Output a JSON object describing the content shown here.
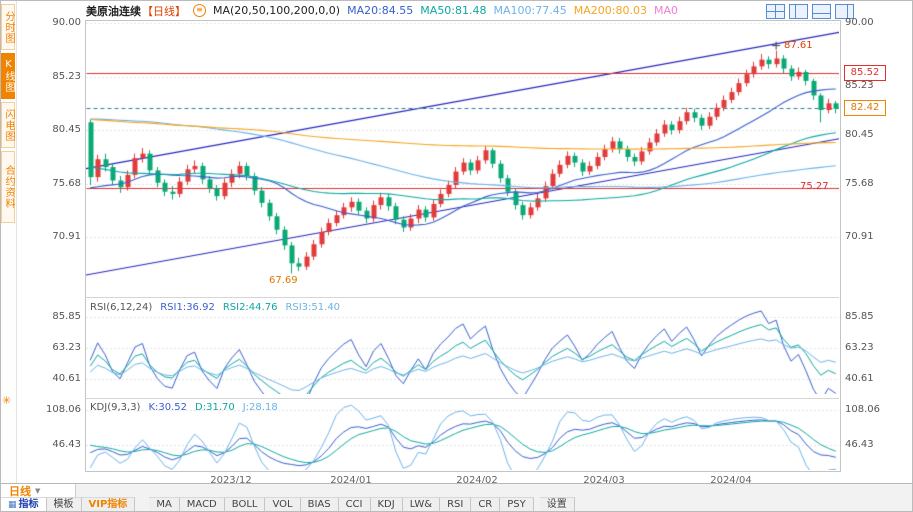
{
  "sidebar": {
    "items": [
      {
        "label": "分时图"
      },
      {
        "label": "K线图"
      },
      {
        "label": "闪电图"
      },
      {
        "label": "合约资料"
      }
    ]
  },
  "header": {
    "title": "美原油连续",
    "period_tag": "【日线】",
    "ma_caption": "MA(20,50,100,200,0,0)",
    "ma_labels": [
      {
        "text": "MA20:84.55",
        "color": "#3a5fcd"
      },
      {
        "text": "MA50:81.48",
        "color": "#0fa8a0"
      },
      {
        "text": "MA100:77.45",
        "color": "#6cb3e8"
      },
      {
        "text": "MA200:80.03",
        "color": "#f5a623"
      },
      {
        "text": "MA0",
        "color": "#f07fd0"
      }
    ]
  },
  "axes": {
    "main": [
      "90.00",
      "85.23",
      "80.45",
      "75.68",
      "70.91"
    ],
    "rsi": [
      "85.85",
      "63.23",
      "40.61"
    ],
    "kdj": [
      "108.06",
      "46.43"
    ]
  },
  "tags": {
    "resistance": "85.52",
    "last": "82.42",
    "support": "75.27",
    "high": "87.61",
    "low": "67.69"
  },
  "rsi_panel": {
    "caption": "RSI(6,12,24)",
    "values": [
      {
        "text": "RSI1:36.92",
        "color": "#3a5fcd"
      },
      {
        "text": "RSI2:44.76",
        "color": "#0fa8a0"
      },
      {
        "text": "RSI3:51.40",
        "color": "#6cb3e8"
      }
    ]
  },
  "kdj_panel": {
    "caption": "KDJ(9,3,3)",
    "values": [
      {
        "text": "K:30.52",
        "color": "#3a5fcd"
      },
      {
        "text": "D:31.70",
        "color": "#0fa8a0"
      },
      {
        "text": "J:28.18",
        "color": "#6cb3e8"
      }
    ]
  },
  "x_axis": [
    "2023/12",
    "2024/01",
    "2024/02",
    "2024/03",
    "2024/04"
  ],
  "bottom": {
    "period": "日线",
    "tabs": [
      "指标",
      "模板",
      "VIP指标"
    ],
    "indicators": [
      "MA",
      "MACD",
      "BOLL",
      "VOL",
      "BIAS",
      "CCI",
      "KDJ",
      "LW&",
      "RSI",
      "CR",
      "PSY"
    ],
    "settings": "设置"
  },
  "chart_data": {
    "type": "candlestick",
    "title": "美原油连续 日线",
    "price_ylim": [
      65.9,
      90.3
    ],
    "y_ticks": [
      90.0,
      85.23,
      80.45,
      75.68,
      70.91
    ],
    "x_ticks": [
      {
        "index": 19,
        "label": "2023/12"
      },
      {
        "index": 35,
        "label": "2024/01"
      },
      {
        "index": 52,
        "label": "2024/02"
      },
      {
        "index": 69,
        "label": "2024/03"
      },
      {
        "index": 86,
        "label": "2024/04"
      }
    ],
    "up_color": "#e23b3b",
    "down_color": "#0aa876",
    "grid_color": "#c9c9c9",
    "trendline_color": "#2222bb",
    "trendlines": [
      {
        "from": [
          0,
          77.0
        ],
        "to": [
          100,
          89.3
        ]
      },
      {
        "from": [
          0,
          67.5
        ],
        "to": [
          100,
          79.8
        ]
      }
    ],
    "hlines": [
      {
        "price": 85.52,
        "color": "#e03030"
      },
      {
        "price": 75.27,
        "color": "#e03030"
      }
    ],
    "last_price_line": {
      "price": 82.42,
      "color": "#2e7d9e"
    },
    "annotations": {
      "high": {
        "index": 92,
        "price": 87.61
      },
      "low": {
        "index": 27,
        "price": 67.69
      }
    },
    "ma_windows": [
      20,
      50,
      100,
      200
    ],
    "ma_colors": [
      "#3a5fcd",
      "#0fa8a0",
      "#6cb3e8",
      "#f5a623"
    ],
    "ma_seed_closes": [
      78.0,
      78.4,
      78.9,
      79.3,
      79.8,
      80.2,
      80.7,
      81.1,
      81.6,
      82.0,
      82.4,
      82.9,
      83.3,
      83.0,
      82.6,
      83.1,
      83.7,
      84.2,
      84.8,
      85.3,
      85.8,
      86.2,
      86.7,
      86.3,
      85.9,
      86.4,
      86.9,
      87.5,
      88.0,
      88.5,
      88.9,
      89.4,
      88.9,
      88.4,
      88.9,
      89.4,
      89.9,
      90.3,
      90.8,
      91.2,
      91.6,
      90.9,
      90.1,
      89.4,
      88.6,
      87.9,
      87.1,
      86.4,
      85.6,
      84.9,
      84.1,
      83.4,
      82.6,
      81.9,
      81.1,
      80.4,
      79.6,
      78.9,
      78.1,
      77.4,
      76.6,
      75.9,
      75.1,
      74.4,
      75.0,
      75.7,
      76.3,
      77.0,
      77.6,
      78.3,
      78.9,
      79.6,
      80.2,
      80.9,
      80.3,
      79.7,
      79.0,
      78.4,
      77.8,
      77.1,
      76.5,
      75.9,
      75.2,
      74.6,
      74.0,
      73.3,
      72.7,
      73.4,
      74.0,
      74.7,
      75.3,
      76.0,
      76.6,
      77.3,
      77.9,
      77.2,
      76.6,
      75.9,
      75.3,
      74.6
    ],
    "candles": [
      [
        81.2,
        81.5,
        75.6,
        76.3
      ],
      [
        76.3,
        78.3,
        75.9,
        77.9
      ],
      [
        77.9,
        78.4,
        76.8,
        77.2
      ],
      [
        77.2,
        77.5,
        75.6,
        76.0
      ],
      [
        76.0,
        76.4,
        74.9,
        75.4
      ],
      [
        75.4,
        76.9,
        75.1,
        76.5
      ],
      [
        76.5,
        78.4,
        76.2,
        78.0
      ],
      [
        78.0,
        78.9,
        77.6,
        78.4
      ],
      [
        78.4,
        78.7,
        76.5,
        76.9
      ],
      [
        76.9,
        77.2,
        75.4,
        75.8
      ],
      [
        75.8,
        76.1,
        74.6,
        75.0
      ],
      [
        75.0,
        75.5,
        74.3,
        74.8
      ],
      [
        74.8,
        76.3,
        74.5,
        75.9
      ],
      [
        75.9,
        77.4,
        75.6,
        77.0
      ],
      [
        77.0,
        77.8,
        76.6,
        77.3
      ],
      [
        77.3,
        77.6,
        75.7,
        76.1
      ],
      [
        76.1,
        76.4,
        74.9,
        75.3
      ],
      [
        75.3,
        75.6,
        74.2,
        74.6
      ],
      [
        74.6,
        76.2,
        74.3,
        75.8
      ],
      [
        75.8,
        77.0,
        75.4,
        76.6
      ],
      [
        76.6,
        77.7,
        76.2,
        77.3
      ],
      [
        77.3,
        77.6,
        76.0,
        76.4
      ],
      [
        76.4,
        76.7,
        74.7,
        75.1
      ],
      [
        75.1,
        75.4,
        73.6,
        74.0
      ],
      [
        74.0,
        74.3,
        72.4,
        72.8
      ],
      [
        72.8,
        73.1,
        71.2,
        71.6
      ],
      [
        71.6,
        71.9,
        69.8,
        70.2
      ],
      [
        70.2,
        70.5,
        67.69,
        68.6
      ],
      [
        68.6,
        69.1,
        67.9,
        68.3
      ],
      [
        68.3,
        69.6,
        68.0,
        69.2
      ],
      [
        69.2,
        70.7,
        68.9,
        70.3
      ],
      [
        70.3,
        71.8,
        70.0,
        71.4
      ],
      [
        71.4,
        72.6,
        71.1,
        72.2
      ],
      [
        72.2,
        73.3,
        71.9,
        72.9
      ],
      [
        72.9,
        74.0,
        72.6,
        73.6
      ],
      [
        73.6,
        74.5,
        73.2,
        74.1
      ],
      [
        74.1,
        74.4,
        72.9,
        73.3
      ],
      [
        73.3,
        73.6,
        72.2,
        72.6
      ],
      [
        72.6,
        74.2,
        72.3,
        73.8
      ],
      [
        73.8,
        74.9,
        73.4,
        74.5
      ],
      [
        74.5,
        74.8,
        73.3,
        73.7
      ],
      [
        73.7,
        74.0,
        72.1,
        72.5
      ],
      [
        72.5,
        72.8,
        71.4,
        71.8
      ],
      [
        71.8,
        73.0,
        71.5,
        72.6
      ],
      [
        72.6,
        73.8,
        72.2,
        73.4
      ],
      [
        73.4,
        73.7,
        72.3,
        72.7
      ],
      [
        72.7,
        74.3,
        72.4,
        73.9
      ],
      [
        73.9,
        75.2,
        73.6,
        74.8
      ],
      [
        74.8,
        76.0,
        74.5,
        75.6
      ],
      [
        75.6,
        77.2,
        75.3,
        76.8
      ],
      [
        76.8,
        78.0,
        76.5,
        77.6
      ],
      [
        77.6,
        77.9,
        76.5,
        76.9
      ],
      [
        76.9,
        78.2,
        76.6,
        77.8
      ],
      [
        77.8,
        79.1,
        77.5,
        78.7
      ],
      [
        78.7,
        78.9,
        77.1,
        77.5
      ],
      [
        77.5,
        77.8,
        75.8,
        76.2
      ],
      [
        76.2,
        76.5,
        74.6,
        75.0
      ],
      [
        75.0,
        75.3,
        73.4,
        73.8
      ],
      [
        73.8,
        74.1,
        72.5,
        72.9
      ],
      [
        72.9,
        74.0,
        72.6,
        73.6
      ],
      [
        73.6,
        74.8,
        73.3,
        74.4
      ],
      [
        74.4,
        75.9,
        74.1,
        75.5
      ],
      [
        75.5,
        77.0,
        75.2,
        76.6
      ],
      [
        76.6,
        77.8,
        76.3,
        77.4
      ],
      [
        77.4,
        78.6,
        77.1,
        78.2
      ],
      [
        78.2,
        78.5,
        77.2,
        77.6
      ],
      [
        77.6,
        77.9,
        76.4,
        76.8
      ],
      [
        76.8,
        77.7,
        76.5,
        77.3
      ],
      [
        77.3,
        78.5,
        77.0,
        78.1
      ],
      [
        78.1,
        79.2,
        77.8,
        78.8
      ],
      [
        78.8,
        79.9,
        78.5,
        79.5
      ],
      [
        79.5,
        79.8,
        78.4,
        78.8
      ],
      [
        78.8,
        79.1,
        77.7,
        78.1
      ],
      [
        78.1,
        78.4,
        77.3,
        77.7
      ],
      [
        77.7,
        79.0,
        77.4,
        78.6
      ],
      [
        78.6,
        79.8,
        78.3,
        79.4
      ],
      [
        79.4,
        80.6,
        79.1,
        80.2
      ],
      [
        80.2,
        81.4,
        79.9,
        81.0
      ],
      [
        81.0,
        81.3,
        80.1,
        80.5
      ],
      [
        80.5,
        81.7,
        80.2,
        81.3
      ],
      [
        81.3,
        82.5,
        81.0,
        82.1
      ],
      [
        82.1,
        82.4,
        81.2,
        81.6
      ],
      [
        81.6,
        81.9,
        80.5,
        80.9
      ],
      [
        80.9,
        82.1,
        80.6,
        81.7
      ],
      [
        81.7,
        82.9,
        81.4,
        82.5
      ],
      [
        82.5,
        83.6,
        82.2,
        83.2
      ],
      [
        83.2,
        84.3,
        82.9,
        83.9
      ],
      [
        83.9,
        85.1,
        83.6,
        84.7
      ],
      [
        84.7,
        85.9,
        84.4,
        85.5
      ],
      [
        85.5,
        86.6,
        85.2,
        86.2
      ],
      [
        86.2,
        87.3,
        85.9,
        86.8
      ],
      [
        86.8,
        87.1,
        86.0,
        86.4
      ],
      [
        86.4,
        87.61,
        86.1,
        86.9
      ],
      [
        86.9,
        87.2,
        85.6,
        86.0
      ],
      [
        86.0,
        86.3,
        84.9,
        85.3
      ],
      [
        85.3,
        86.1,
        85.0,
        85.7
      ],
      [
        85.7,
        85.9,
        84.5,
        84.9
      ],
      [
        84.9,
        85.1,
        83.2,
        83.6
      ],
      [
        83.6,
        83.8,
        81.2,
        82.3
      ],
      [
        82.3,
        83.3,
        82.0,
        82.9
      ],
      [
        82.9,
        83.1,
        82.0,
        82.42
      ]
    ],
    "rsi": {
      "periods": [
        6,
        12,
        24
      ],
      "ylim": [
        30,
        98
      ],
      "ticks": [
        85.85,
        63.23,
        40.61
      ],
      "colors": [
        "#3a5fcd",
        "#0fa8a0",
        "#6cb3e8"
      ],
      "last_values": [
        36.92,
        44.76,
        51.4
      ]
    },
    "kdj": {
      "params": [
        9,
        3,
        3
      ],
      "ylim": [
        2,
        126
      ],
      "ticks": [
        108.06,
        46.43
      ],
      "colors": [
        "#3a5fcd",
        "#0fa8a0",
        "#6cb3e8"
      ],
      "last_values": [
        30.52,
        31.7,
        28.18
      ]
    }
  }
}
